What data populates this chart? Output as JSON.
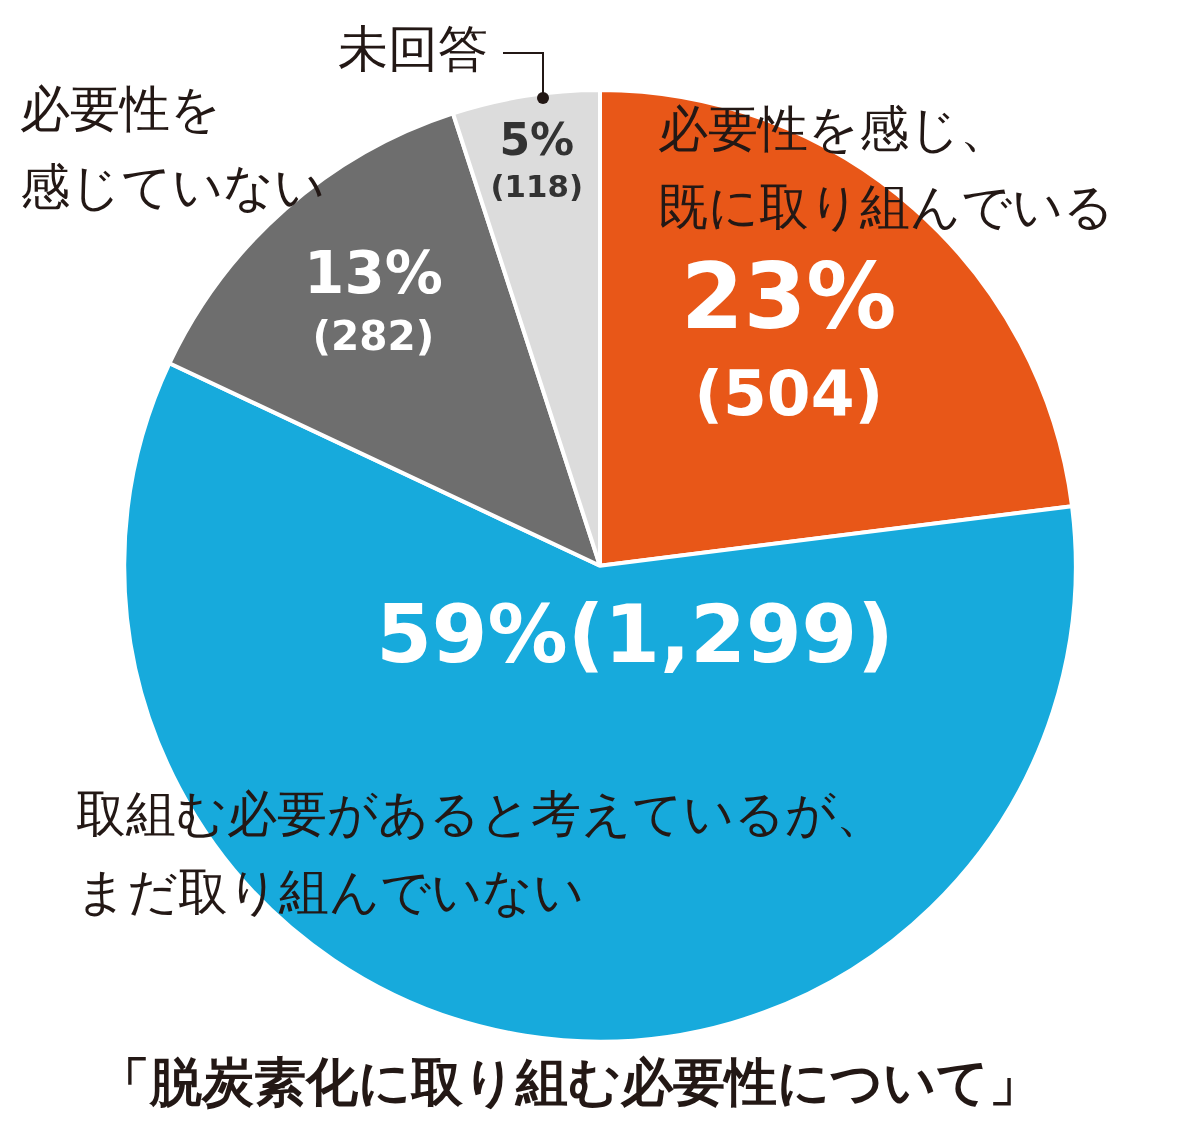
{
  "chart_data": {
    "type": "pie",
    "title": "「脱炭素化に取り組む必要性について」",
    "categories": [
      "必要性を感じ、既に取り組んでいる",
      "取組む必要があると考えているが、まだ取り組んでいない",
      "必要性を感じていない",
      "未回答"
    ],
    "values": [
      23,
      59,
      13,
      5
    ],
    "colors": [
      "#e85718",
      "#17aadc",
      "#6e6e6e",
      "#dcdcdc"
    ],
    "value_labels": [
      "23%\n(504)",
      "59%(1,299)",
      "13%\n(282)",
      "5%\n(118)"
    ],
    "legend": false
  }
}
